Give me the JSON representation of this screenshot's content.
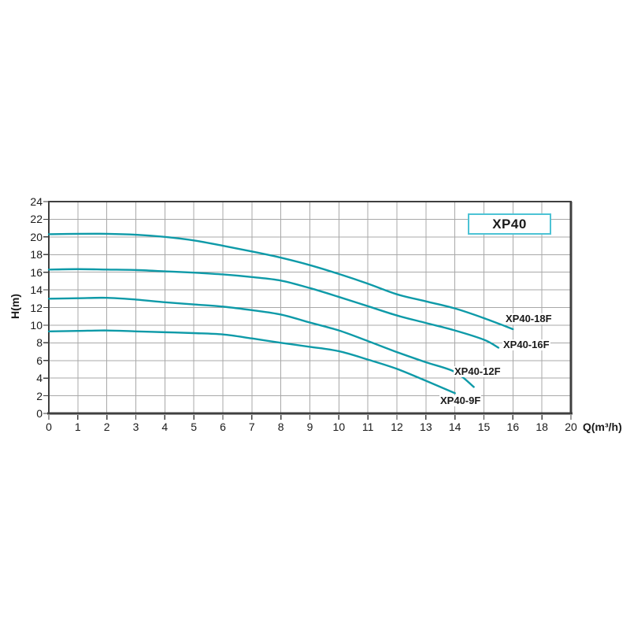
{
  "ui": {
    "background": "#ffffff",
    "frame_color": "#3f3f3f",
    "grid_color": "#a8a8a8",
    "text_color": "#1a1a1a",
    "model_box": {
      "label": "XP40",
      "border_color": "#4cc3d5"
    }
  },
  "chart_data": {
    "type": "line",
    "title": "XP40",
    "xlabel": "Q(m³/h)",
    "ylabel": "H(m)",
    "grid": true,
    "legend_position": "labels-at-curve-ends",
    "x_tick_labels": [
      "0",
      "1",
      "2",
      "3",
      "4",
      "5",
      "6",
      "7",
      "8",
      "9",
      "10",
      "11",
      "12",
      "13",
      "14",
      "15",
      "16",
      "18",
      "20"
    ],
    "x_axis_note": "1 unit per gridline from 0 to 16, then 2 units per gridline (18, 20)",
    "y_ticks": [
      0,
      2,
      4,
      6,
      8,
      10,
      12,
      14,
      16,
      18,
      20,
      22,
      24
    ],
    "ylim": [
      0,
      24
    ],
    "line_color": "#0e9aa8",
    "series": [
      {
        "name": "XP40-18F",
        "color": "#0e9aa8",
        "points": [
          [
            0,
            20.3
          ],
          [
            1,
            20.35
          ],
          [
            2,
            20.35
          ],
          [
            3,
            20.25
          ],
          [
            4,
            20.0
          ],
          [
            5,
            19.6
          ],
          [
            6,
            19.0
          ],
          [
            7,
            18.35
          ],
          [
            8,
            17.65
          ],
          [
            9,
            16.8
          ],
          [
            10,
            15.8
          ],
          [
            11,
            14.7
          ],
          [
            12,
            13.5
          ],
          [
            13,
            12.7
          ],
          [
            14,
            11.9
          ],
          [
            15,
            10.8
          ],
          [
            16,
            9.55
          ]
        ]
      },
      {
        "name": "XP40-16F",
        "color": "#0e9aa8",
        "points": [
          [
            0,
            16.3
          ],
          [
            1,
            16.35
          ],
          [
            2,
            16.3
          ],
          [
            3,
            16.25
          ],
          [
            4,
            16.1
          ],
          [
            5,
            15.95
          ],
          [
            6,
            15.75
          ],
          [
            7,
            15.45
          ],
          [
            8,
            15.05
          ],
          [
            9,
            14.2
          ],
          [
            10,
            13.2
          ],
          [
            11,
            12.15
          ],
          [
            12,
            11.1
          ],
          [
            13,
            10.25
          ],
          [
            14,
            9.4
          ],
          [
            15,
            8.35
          ],
          [
            15.5,
            7.45
          ]
        ]
      },
      {
        "name": "XP40-12F",
        "color": "#0e9aa8",
        "points": [
          [
            0,
            13.0
          ],
          [
            1,
            13.05
          ],
          [
            2,
            13.1
          ],
          [
            3,
            12.9
          ],
          [
            4,
            12.6
          ],
          [
            5,
            12.35
          ],
          [
            6,
            12.1
          ],
          [
            7,
            11.7
          ],
          [
            8,
            11.2
          ],
          [
            9,
            10.3
          ],
          [
            10,
            9.4
          ],
          [
            11,
            8.2
          ],
          [
            12,
            6.95
          ],
          [
            13,
            5.8
          ],
          [
            14,
            4.7
          ],
          [
            14.65,
            3.0
          ]
        ]
      },
      {
        "name": "XP40-9F",
        "color": "#0e9aa8",
        "points": [
          [
            0,
            9.3
          ],
          [
            1,
            9.35
          ],
          [
            2,
            9.4
          ],
          [
            3,
            9.3
          ],
          [
            4,
            9.2
          ],
          [
            5,
            9.1
          ],
          [
            6,
            8.95
          ],
          [
            7,
            8.5
          ],
          [
            8,
            8.0
          ],
          [
            9,
            7.55
          ],
          [
            10,
            7.05
          ],
          [
            11,
            6.1
          ],
          [
            12,
            5.05
          ],
          [
            13,
            3.7
          ],
          [
            14,
            2.3
          ]
        ]
      }
    ]
  }
}
